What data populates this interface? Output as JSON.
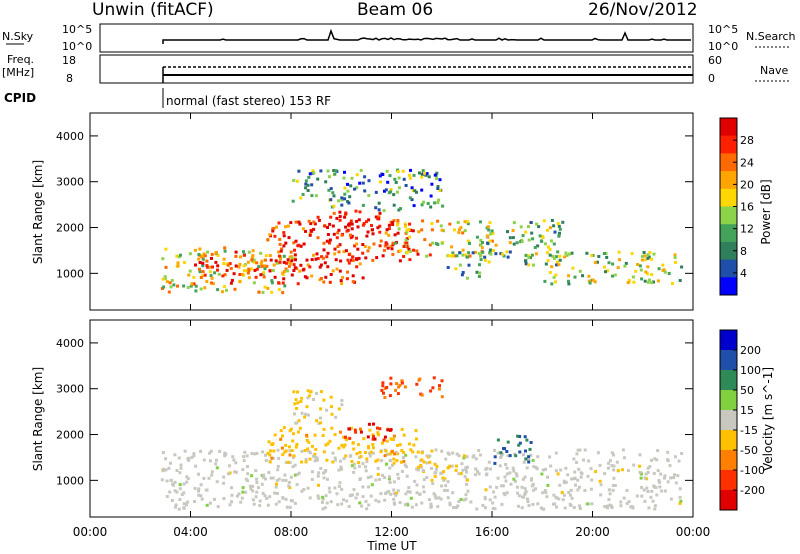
{
  "header": {
    "title": "Unwin (fitACF)",
    "beam": "Beam 06",
    "date": "26/Nov/2012"
  },
  "param_panels": {
    "nsky_label": "N.Sky",
    "nsky_ticks": [
      "10^5",
      "10^0"
    ],
    "nsearch_label": "N.Search",
    "nsearch_ticks": [
      "10^5",
      "10^0"
    ],
    "freq_label": "Freq.",
    "freq_unit": "[MHz]",
    "freq_ticks": [
      "18",
      "8"
    ],
    "nave_label": "Nave",
    "nave_ticks": [
      "60",
      "0"
    ],
    "cpid_label": "CPID",
    "cpid_text": "normal (fast stereo) 153 RF",
    "cpid_start_time": "02:45"
  },
  "x_axis": {
    "label": "Time UT",
    "ticks": [
      "00:00",
      "04:00",
      "08:00",
      "12:00",
      "16:00",
      "20:00",
      "00:00"
    ],
    "range_hours": [
      0,
      24
    ]
  },
  "chart_data": [
    {
      "type": "heatmap",
      "name": "power",
      "ylabel": "Slant Range [km]",
      "yticks": [
        "4000",
        "3000",
        "2000",
        "1000"
      ],
      "ylim": [
        200,
        4500
      ],
      "xlim_hours": [
        0,
        24
      ],
      "colorbar": {
        "label": "Power [dB]",
        "ticks": [
          "28",
          "24",
          "20",
          "16",
          "12",
          "8",
          "4"
        ],
        "range": [
          0,
          32
        ],
        "colors": [
          "#0000ff",
          "#1f4fa8",
          "#2e7f5a",
          "#43a35a",
          "#8dd34a",
          "#ffd700",
          "#ffa500",
          "#ff6a00",
          "#ff2000",
          "#e00000"
        ]
      },
      "regions": [
        {
          "t0": 2.8,
          "t1": 8,
          "r0": 600,
          "r1": 1600,
          "level": 0.55
        },
        {
          "t0": 4,
          "t1": 11,
          "r0": 800,
          "r1": 1500,
          "level": 0.85
        },
        {
          "t0": 7,
          "t1": 13,
          "r0": 1300,
          "r1": 2200,
          "level": 0.9
        },
        {
          "t0": 9,
          "t1": 12,
          "r0": 1800,
          "r1": 2400,
          "level": 0.95
        },
        {
          "t0": 12,
          "t1": 16,
          "r0": 1400,
          "r1": 2200,
          "level": 0.6
        },
        {
          "t0": 15.5,
          "t1": 19,
          "r0": 1200,
          "r1": 2200,
          "level": 0.4
        },
        {
          "t0": 18,
          "t1": 23.5,
          "r0": 800,
          "r1": 1500,
          "level": 0.45
        },
        {
          "t0": 8,
          "t1": 14,
          "r0": 2400,
          "r1": 3300,
          "level": 0.3
        },
        {
          "t0": 14,
          "t1": 15.5,
          "r0": 900,
          "r1": 1500,
          "level": 0.35
        }
      ]
    },
    {
      "type": "heatmap",
      "name": "velocity",
      "ylabel": "Slant Range [km]",
      "yticks": [
        "4000",
        "3000",
        "2000",
        "1000"
      ],
      "ylim": [
        200,
        4500
      ],
      "xlim_hours": [
        0,
        24
      ],
      "colorbar": {
        "label": "Velocity [m s^-1]",
        "ticks": [
          "200",
          "100",
          "50",
          "15",
          "-15",
          "-50",
          "-100",
          "-200"
        ],
        "range": [
          -250,
          250
        ],
        "colors": [
          "#e00000",
          "#ff3000",
          "#ff8000",
          "#ffc000",
          "#c8c8c0",
          "#80d040",
          "#2e8b57",
          "#1f4fa8",
          "#0000cc"
        ]
      },
      "regions": [
        {
          "t0": 2.8,
          "t1": 23.5,
          "r0": 400,
          "r1": 1700,
          "value": 0
        },
        {
          "t0": 7,
          "t1": 13,
          "r0": 1400,
          "r1": 2200,
          "value": -60
        },
        {
          "t0": 10,
          "t1": 12,
          "r0": 1900,
          "r1": 2300,
          "value": -200
        },
        {
          "t0": 11.5,
          "t1": 14,
          "r0": 2800,
          "r1": 3300,
          "value": -150
        },
        {
          "t0": 16,
          "t1": 17.5,
          "r0": 1400,
          "r1": 2000,
          "value": 150
        },
        {
          "t0": 13,
          "t1": 15,
          "r0": 1000,
          "r1": 1700,
          "value": -40
        },
        {
          "t0": 8,
          "t1": 10,
          "r0": 2200,
          "r1": 3000,
          "value": -30
        }
      ]
    }
  ]
}
